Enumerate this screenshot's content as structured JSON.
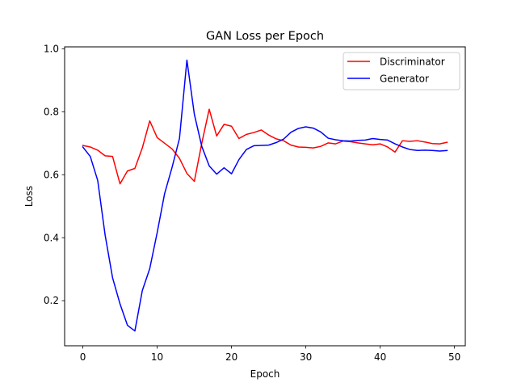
{
  "chart_data": {
    "type": "line",
    "title": "GAN Loss per Epoch",
    "xlabel": "Epoch",
    "ylabel": "Loss",
    "xlim": [
      -2.45,
      51.45
    ],
    "ylim": [
      0.057,
      1.006
    ],
    "x_ticks": [
      0,
      10,
      20,
      30,
      40,
      50
    ],
    "y_ticks": [
      0.2,
      0.4,
      0.6,
      0.8,
      1.0
    ],
    "x_tick_labels": [
      "0",
      "10",
      "20",
      "30",
      "40",
      "50"
    ],
    "y_tick_labels": [
      "0.2",
      "0.4",
      "0.6",
      "0.8",
      "1.0"
    ],
    "grid": false,
    "legend_position": "top-right",
    "x": [
      0,
      1,
      2,
      3,
      4,
      5,
      6,
      7,
      8,
      9,
      10,
      11,
      12,
      13,
      14,
      15,
      16,
      17,
      18,
      19,
      20,
      21,
      22,
      23,
      24,
      25,
      26,
      27,
      28,
      29,
      30,
      31,
      32,
      33,
      34,
      35,
      36,
      37,
      38,
      39,
      40,
      41,
      42,
      43,
      44,
      45,
      46,
      47,
      48,
      49
    ],
    "series": [
      {
        "name": "Discriminator",
        "color": "#ff0000",
        "values": [
          0.693,
          0.688,
          0.678,
          0.66,
          0.658,
          0.571,
          0.612,
          0.62,
          0.685,
          0.771,
          0.718,
          0.7,
          0.682,
          0.652,
          0.604,
          0.579,
          0.7,
          0.808,
          0.723,
          0.76,
          0.754,
          0.715,
          0.728,
          0.734,
          0.742,
          0.726,
          0.714,
          0.708,
          0.694,
          0.688,
          0.687,
          0.685,
          0.69,
          0.701,
          0.698,
          0.707,
          0.705,
          0.701,
          0.698,
          0.695,
          0.698,
          0.688,
          0.672,
          0.708,
          0.706,
          0.708,
          0.704,
          0.699,
          0.698,
          0.703
        ]
      },
      {
        "name": "Generator",
        "color": "#0000ff",
        "values": [
          0.688,
          0.658,
          0.582,
          0.408,
          0.273,
          0.19,
          0.122,
          0.104,
          0.232,
          0.302,
          0.416,
          0.54,
          0.623,
          0.715,
          0.964,
          0.792,
          0.69,
          0.628,
          0.602,
          0.622,
          0.603,
          0.648,
          0.68,
          0.692,
          0.693,
          0.694,
          0.702,
          0.713,
          0.735,
          0.747,
          0.752,
          0.748,
          0.736,
          0.716,
          0.711,
          0.708,
          0.707,
          0.709,
          0.71,
          0.715,
          0.712,
          0.71,
          0.698,
          0.688,
          0.68,
          0.677,
          0.678,
          0.677,
          0.675,
          0.677
        ]
      }
    ]
  }
}
